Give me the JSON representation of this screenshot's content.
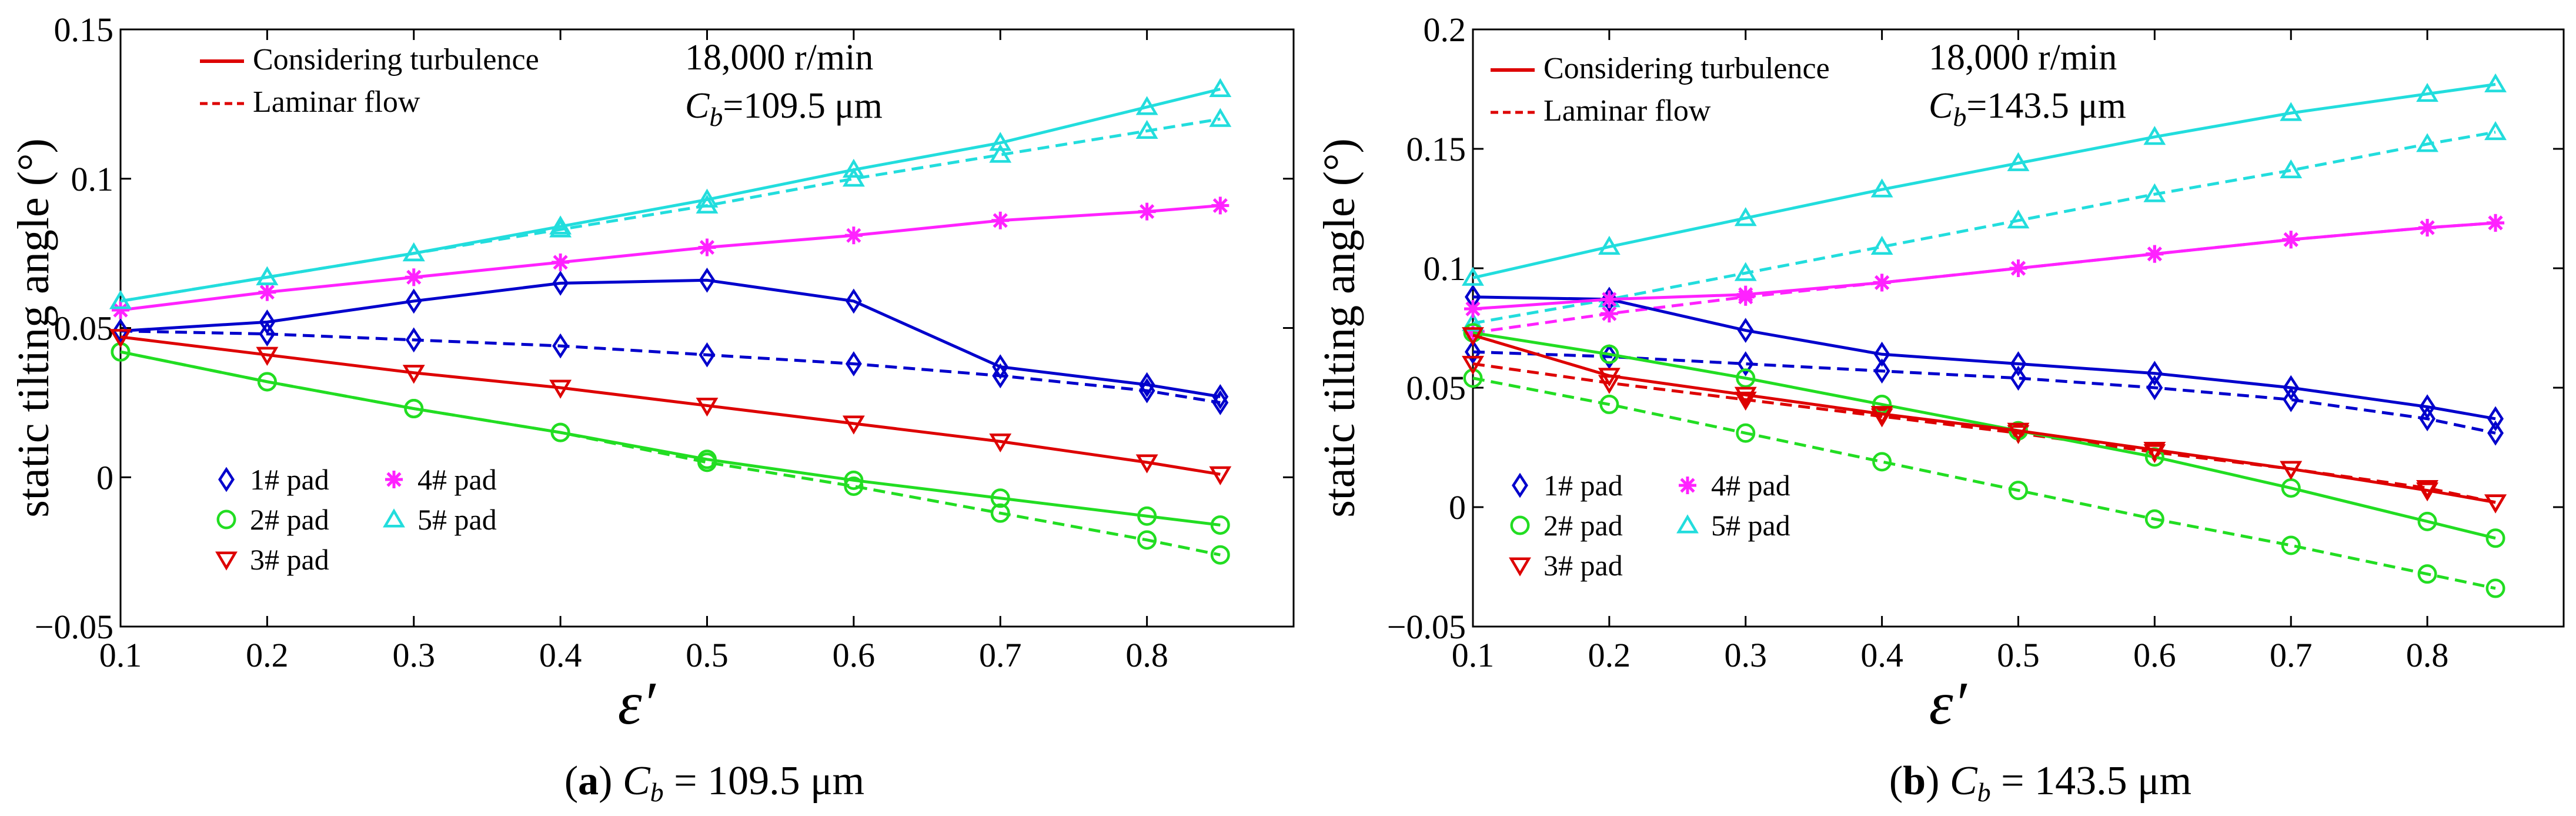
{
  "figure": {
    "series_legend": [
      "1# pad",
      "2# pad",
      "3# pad",
      "4# pad",
      "5# pad"
    ],
    "line_legend": {
      "solid": "Considering turbulence",
      "dashed": "Laminar flow"
    },
    "speed_label": "18,000 r/min",
    "colors": {
      "pad1": "#0000cc",
      "pad2": "#22dd22",
      "pad3": "#dd0000",
      "pad4": "#ff22ff",
      "pad5": "#22dddd"
    },
    "marker_icons": [
      "diamond-icon",
      "circle-icon",
      "triangle-down-icon",
      "asterisk-icon",
      "triangle-up-icon"
    ]
  },
  "chart_data": [
    {
      "type": "line",
      "panel_letter": "a",
      "caption_rest": "= 109.5 μm",
      "cb_value_label": "=109.5 μm",
      "xlabel": "ε′",
      "ylabel": "static tilting angle (°)",
      "xlim": [
        0.1,
        0.9
      ],
      "ylim": [
        -0.05,
        0.15
      ],
      "xticks": [
        0.1,
        0.2,
        0.3,
        0.4,
        0.5,
        0.6,
        0.7,
        0.8
      ],
      "xtick_labels": [
        "0.1",
        "0.2",
        "0.3",
        "0.4",
        "0.5",
        "0.6",
        "0.7",
        "0.8"
      ],
      "yticks": [
        -0.05,
        0,
        0.05,
        0.1,
        0.15
      ],
      "ytick_labels": [
        "−0.05",
        "0",
        "0.05",
        "0.1",
        "0.15"
      ],
      "x": [
        0.1,
        0.2,
        0.3,
        0.4,
        0.5,
        0.6,
        0.7,
        0.8,
        0.85
      ],
      "series": [
        {
          "name": "1# pad",
          "style": "solid",
          "values": [
            0.049,
            0.052,
            0.059,
            0.065,
            0.066,
            0.059,
            0.037,
            0.031,
            0.027
          ]
        },
        {
          "name": "1# pad",
          "style": "dashed",
          "values": [
            0.049,
            0.048,
            0.046,
            0.044,
            0.041,
            0.038,
            0.034,
            0.029,
            0.025
          ]
        },
        {
          "name": "2# pad",
          "style": "solid",
          "values": [
            0.042,
            0.032,
            0.023,
            0.015,
            0.006,
            -0.001,
            -0.007,
            -0.013,
            -0.016
          ]
        },
        {
          "name": "2# pad",
          "style": "dashed",
          "values": [
            0.042,
            0.032,
            0.023,
            0.015,
            0.005,
            -0.003,
            -0.012,
            -0.021,
            -0.026
          ]
        },
        {
          "name": "3# pad",
          "style": "solid",
          "values": [
            0.047,
            0.041,
            0.035,
            0.03,
            0.024,
            0.018,
            0.012,
            0.005,
            0.001
          ]
        },
        {
          "name": "4# pad",
          "style": "solid",
          "values": [
            0.056,
            0.062,
            0.067,
            0.072,
            0.077,
            0.081,
            0.086,
            0.089,
            0.091
          ]
        },
        {
          "name": "5# pad",
          "style": "solid",
          "values": [
            0.059,
            0.067,
            0.075,
            0.084,
            0.093,
            0.103,
            0.112,
            0.124,
            0.13
          ]
        },
        {
          "name": "5# pad",
          "style": "dashed",
          "values": [
            0.059,
            0.067,
            0.075,
            0.083,
            0.091,
            0.1,
            0.108,
            0.116,
            0.12
          ]
        }
      ]
    },
    {
      "type": "line",
      "panel_letter": "b",
      "caption_rest": "= 143.5 μm",
      "cb_value_label": "=143.5 μm",
      "xlabel": "ε′",
      "ylabel": "static tilting angle (°)",
      "xlim": [
        0.1,
        0.9
      ],
      "ylim": [
        -0.05,
        0.2
      ],
      "xticks": [
        0.1,
        0.2,
        0.3,
        0.4,
        0.5,
        0.6,
        0.7,
        0.8
      ],
      "xtick_labels": [
        "0.1",
        "0.2",
        "0.3",
        "0.4",
        "0.5",
        "0.6",
        "0.7",
        "0.8"
      ],
      "yticks": [
        -0.05,
        0,
        0.05,
        0.1,
        0.15,
        0.2
      ],
      "ytick_labels": [
        "−0.05",
        "0",
        "0.05",
        "0.1",
        "0.15",
        "0.2"
      ],
      "x": [
        0.1,
        0.2,
        0.3,
        0.4,
        0.5,
        0.6,
        0.7,
        0.8,
        0.85
      ],
      "series": [
        {
          "name": "1# pad",
          "style": "solid",
          "values": [
            0.088,
            0.087,
            0.074,
            0.064,
            0.06,
            0.056,
            0.05,
            0.042,
            0.037
          ]
        },
        {
          "name": "1# pad",
          "style": "dashed",
          "values": [
            0.065,
            0.063,
            0.06,
            0.057,
            0.054,
            0.05,
            0.045,
            0.037,
            0.031
          ]
        },
        {
          "name": "2# pad",
          "style": "solid",
          "values": [
            0.073,
            0.064,
            0.054,
            0.043,
            0.032,
            0.021,
            0.008,
            -0.006,
            -0.013
          ]
        },
        {
          "name": "2# pad",
          "style": "dashed",
          "values": [
            0.054,
            0.043,
            0.031,
            0.019,
            0.007,
            -0.005,
            -0.016,
            -0.028,
            -0.034
          ]
        },
        {
          "name": "3# pad",
          "style": "solid",
          "values": [
            0.072,
            0.055,
            0.047,
            0.039,
            0.032,
            0.024,
            0.016,
            0.007,
            0.002
          ]
        },
        {
          "name": "3# pad",
          "style": "dashed",
          "values": [
            0.06,
            0.052,
            0.045,
            0.038,
            0.031,
            0.023,
            0.016,
            0.008,
            0.002
          ]
        },
        {
          "name": "4# pad",
          "style": "solid",
          "values": [
            0.083,
            0.087,
            0.089,
            0.094,
            0.1,
            0.106,
            0.112,
            0.117,
            0.119
          ]
        },
        {
          "name": "4# pad",
          "style": "dashed",
          "values": [
            0.073,
            0.081,
            0.088,
            0.094,
            0.1,
            0.106,
            0.112,
            0.117,
            0.119
          ]
        },
        {
          "name": "5# pad",
          "style": "solid",
          "values": [
            0.096,
            0.109,
            0.121,
            0.133,
            0.144,
            0.155,
            0.165,
            0.173,
            0.177
          ]
        },
        {
          "name": "5# pad",
          "style": "dashed",
          "values": [
            0.077,
            0.087,
            0.098,
            0.109,
            0.12,
            0.131,
            0.141,
            0.152,
            0.157
          ]
        }
      ]
    }
  ]
}
